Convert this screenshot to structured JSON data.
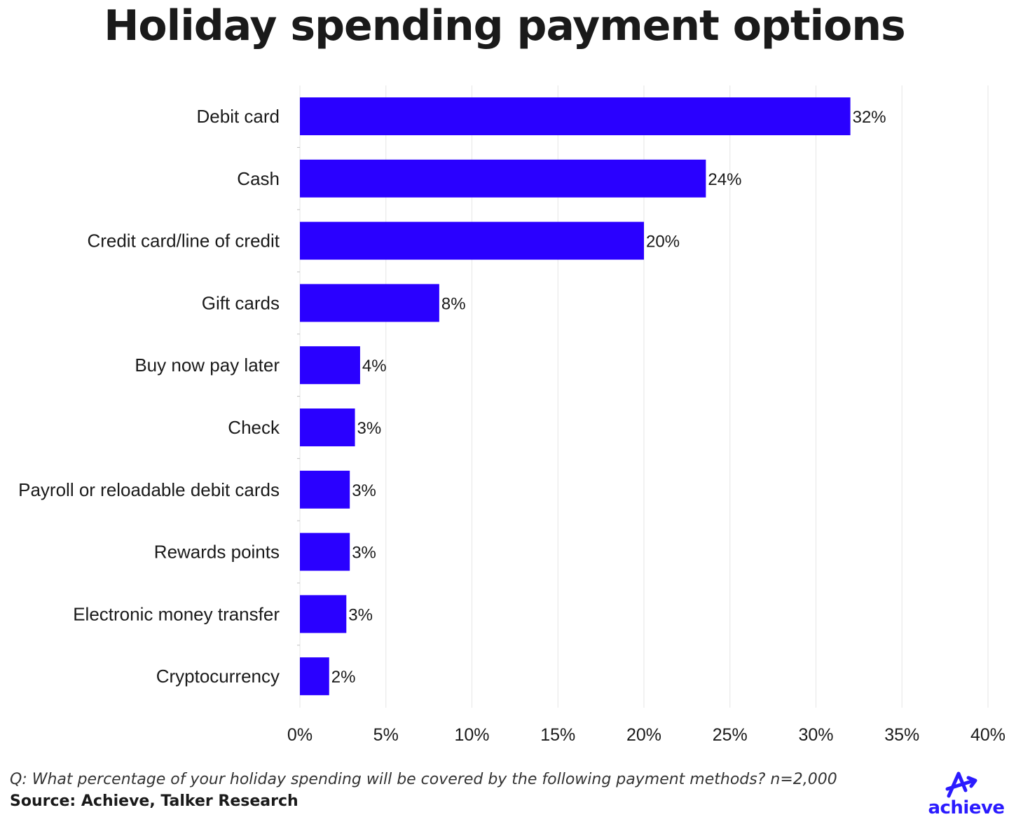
{
  "title": "Holiday spending payment options",
  "question": "Q: What percentage of your holiday spending will be covered by the following payment methods? n=2,000",
  "source": "Source: Achieve, Talker Research",
  "logo": {
    "text": "achieve",
    "icon": "achieve-arrow-logo-icon",
    "color": "#2b1bff"
  },
  "colors": {
    "bar": "#2a00ff",
    "grid": "#e6e6e6",
    "text": "#1a1a1a"
  },
  "chart_data": {
    "type": "bar",
    "orientation": "horizontal",
    "categories": [
      "Debit card",
      "Cash",
      "Credit card/line of credit",
      "Gift cards",
      "Buy now pay later",
      "Check",
      "Payroll or reloadable debit cards",
      "Rewards points",
      "Electronic money transfer",
      "Cryptocurrency"
    ],
    "values": [
      32,
      23.6,
      20,
      8.1,
      3.5,
      3.2,
      2.9,
      2.9,
      2.7,
      1.7
    ],
    "data_labels": [
      "32%",
      "24%",
      "20%",
      "8%",
      "4%",
      "3%",
      "3%",
      "3%",
      "3%",
      "2%"
    ],
    "x_ticks": [
      "0%",
      "5%",
      "10%",
      "15%",
      "20%",
      "25%",
      "30%",
      "35%",
      "40%"
    ],
    "xlim": [
      0,
      40
    ],
    "grid": true,
    "legend": "none"
  }
}
